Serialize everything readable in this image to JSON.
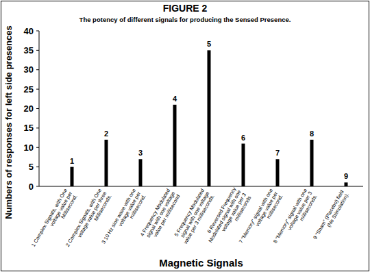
{
  "chart_data": {
    "type": "bar",
    "title": "FIGURE 2",
    "subtitle": "The potency of different signals for producing the Sensed Presence.",
    "x_label": "Magnetic Signals",
    "y_label": "Numbers of responses for left side presences",
    "categories": [
      "1 Complex Signals, with One voltage value per Millisecond.",
      "2 Complex Signals, with One voltage value per three Milliseconds.",
      "3 10 Hz sine wave with one voltage value per millisecond.",
      "4 Frequency Modulated signal with one voltage value per millisecond",
      "5 Frequency Modulated signal with one voltage value per 3 milliseconds.",
      "6 Reversed Frequency Modulated signal with one voltage value per 3 milliseconds",
      "7 \"Memory\" signal with one voltage value per millisecond.",
      "8 \"Memory\" signal with one voltage value per 3 milliseconds.",
      "9 \"Sham\" (Placebo) field (No Stimulation)."
    ],
    "bar_labels": [
      "1",
      "2",
      "3",
      "4",
      "5",
      "6",
      "7",
      "8",
      "9"
    ],
    "values": [
      5,
      12,
      7,
      21,
      35,
      11,
      7,
      12,
      1
    ],
    "color": "#000000",
    "ylim": [
      0,
      40
    ],
    "yticks": [
      0,
      5,
      10,
      15,
      20,
      25,
      30,
      35,
      40
    ],
    "grid": false
  }
}
